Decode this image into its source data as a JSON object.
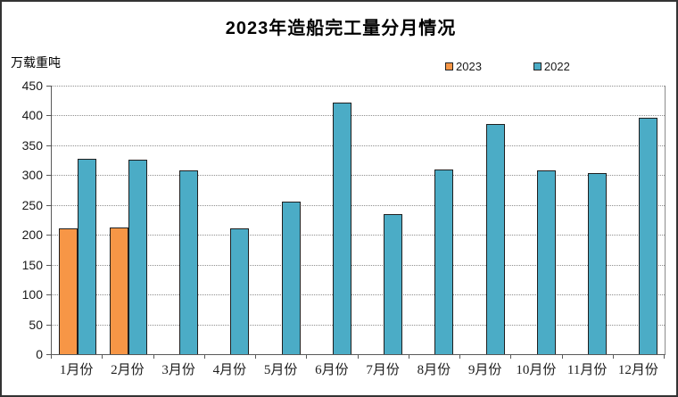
{
  "title": "2023年造船完工量分月情况",
  "y_axis_unit_label": "万载重吨",
  "chart_data": {
    "type": "bar",
    "title": "2023年造船完工量分月情况",
    "ylabel": "万载重吨",
    "xlabel": "",
    "categories": [
      "1月份",
      "2月份",
      "3月份",
      "4月份",
      "5月份",
      "6月份",
      "7月份",
      "8月份",
      "9月份",
      "10月份",
      "11月份",
      "12月份"
    ],
    "series": [
      {
        "name": "2023",
        "color": "#F79646",
        "values": [
          211,
          212,
          null,
          null,
          null,
          null,
          null,
          null,
          null,
          null,
          null,
          null
        ]
      },
      {
        "name": "2022",
        "color": "#4BACC6",
        "values": [
          327,
          326,
          308,
          211,
          256,
          421,
          235,
          309,
          386,
          308,
          303,
          396
        ]
      }
    ],
    "ylim": [
      0,
      450
    ],
    "ytick_step": 50,
    "grid": true,
    "legend_position": "top-right",
    "bar_border_color": "#1F1F1F",
    "gridline_style": "dotted"
  }
}
